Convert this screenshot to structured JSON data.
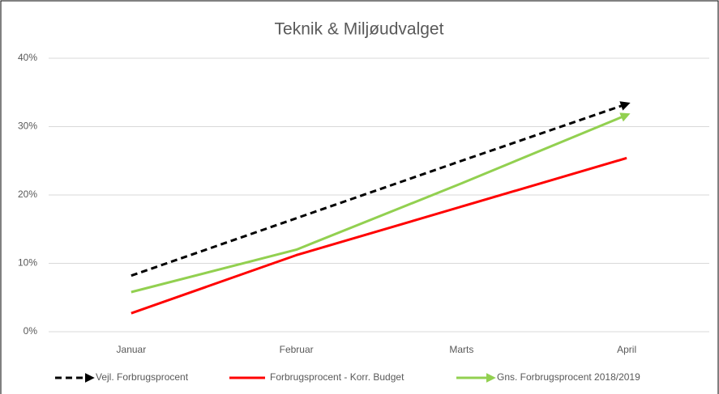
{
  "chart_data": {
    "type": "line",
    "title": "Teknik & Miljøudvalget",
    "categories": [
      "Januar",
      "Februar",
      "Marts",
      "April"
    ],
    "ylim": [
      0,
      40
    ],
    "yticks": [
      {
        "value": 0,
        "label": "0%"
      },
      {
        "value": 10,
        "label": "10%"
      },
      {
        "value": 20,
        "label": "20%"
      },
      {
        "value": 30,
        "label": "30%"
      },
      {
        "value": 40,
        "label": "40%"
      }
    ],
    "grid": true,
    "legend": "bottom",
    "series": [
      {
        "name": "Vejl. Forbrugsprocent",
        "color": "#000000",
        "dashed": true,
        "arrow": true,
        "values": [
          8.2,
          16.6,
          25.0,
          33.3
        ]
      },
      {
        "name": "Forbrugsprocent  - Korr. Budget",
        "color": "#ff0000",
        "dashed": false,
        "arrow": false,
        "values": [
          2.7,
          11.2,
          18.3,
          25.4
        ]
      },
      {
        "name": "Gns. Forbrugsprocent 2018/2019",
        "color": "#92d050",
        "dashed": false,
        "arrow": true,
        "values": [
          5.8,
          12.0,
          21.7,
          31.7
        ]
      }
    ]
  }
}
